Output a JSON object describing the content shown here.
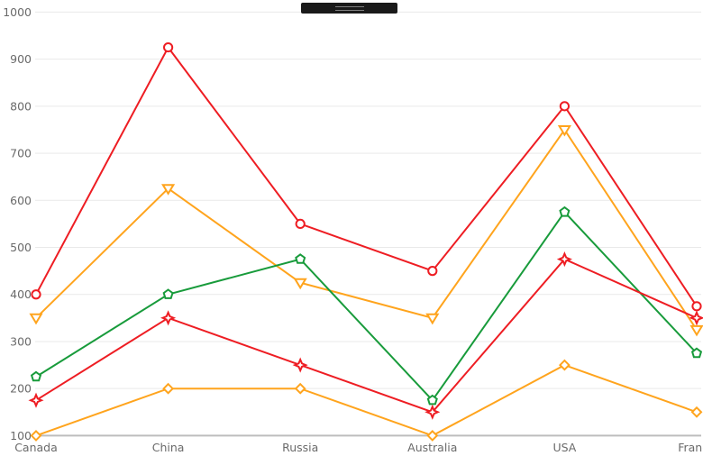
{
  "chart_data": {
    "type": "line",
    "title": "",
    "xlabel": "",
    "ylabel": "",
    "categories": [
      "Canada",
      "China",
      "Russia",
      "Australia",
      "USA",
      "France"
    ],
    "series": [
      {
        "name": "series-1-red-circles",
        "marker": "circle",
        "color": "#ee1d23",
        "values": [
          400,
          925,
          550,
          450,
          800,
          375
        ]
      },
      {
        "name": "series-2-orange-triangles",
        "marker": "triangle-down",
        "color": "#ffa41d",
        "values": [
          350,
          625,
          425,
          350,
          750,
          325
        ]
      },
      {
        "name": "series-3-green-pentagons",
        "marker": "pentagon",
        "color": "#189b3b",
        "values": [
          225,
          400,
          475,
          175,
          575,
          275
        ]
      },
      {
        "name": "series-4-red-diamonds",
        "marker": "diamond-star",
        "color": "#ee1d23",
        "values": [
          175,
          350,
          250,
          150,
          475,
          350
        ]
      },
      {
        "name": "series-5-orange-diamonds",
        "marker": "diamond",
        "color": "#ffa41d",
        "values": [
          100,
          200,
          200,
          100,
          250,
          150
        ]
      }
    ],
    "ylim": [
      100,
      1000
    ],
    "yticks": [
      1000,
      900,
      800,
      700,
      600,
      500,
      400,
      300,
      200,
      100
    ],
    "grid": true,
    "legend_position": "none"
  },
  "overlay": {
    "drag_handle_icon": "grip-lines"
  },
  "colors": {
    "background": "#ffffff",
    "gridline": "#e9e9e9",
    "axis_line": "#bdbdbd",
    "tick_label": "#6a6a6a",
    "red": "#ee1d23",
    "orange": "#ffa41d",
    "green": "#189b3b",
    "handle_bg": "#1a1a1a",
    "handle_grip": "#7f7f7f"
  }
}
